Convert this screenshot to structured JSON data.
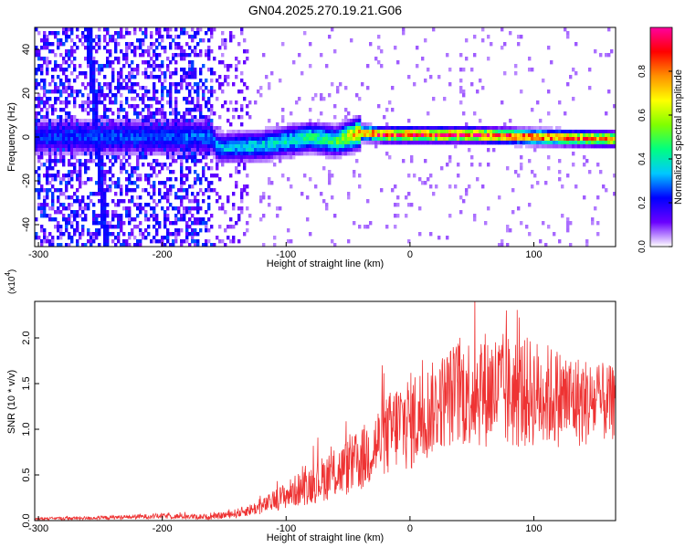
{
  "title": "GN04.2025.270.19.21.G06",
  "chart_data": [
    {
      "type": "heatmap",
      "xlabel": "Height of straight line (km)",
      "ylabel": "Frequency (Hz)",
      "xlim": [
        -303,
        166
      ],
      "ylim": [
        -50,
        50
      ],
      "xticks": [
        -300,
        -200,
        -100,
        0,
        100
      ],
      "xtick_labels": [
        "-300",
        "-200",
        "-100",
        "0",
        "100"
      ],
      "yticks": [
        -40,
        -20,
        0,
        20,
        40
      ],
      "ytick_labels": [
        "-40",
        "-20",
        "0",
        "20",
        "40"
      ],
      "colorbar": {
        "label": "Normalized spectral amplitude",
        "range": [
          0,
          1
        ],
        "ticks": [
          0.0,
          0.2,
          0.4,
          0.6,
          0.8
        ],
        "tick_labels": [
          "0.0",
          "0.2",
          "0.4",
          "0.6",
          "0.8"
        ],
        "colors": [
          "#ffffff",
          "#6a00ff",
          "#0000ff",
          "#00c8ff",
          "#00ff80",
          "#80ff00",
          "#ffff00",
          "#ff9000",
          "#ff0000",
          "#ff00a0"
        ]
      },
      "features": [
        {
          "name": "ridge",
          "x": [
            -303,
            -160,
            -155,
            -120,
            -80,
            -60,
            -40,
            -20,
            0,
            50,
            100,
            166
          ],
          "freq": [
            0,
            0,
            -5,
            -4,
            0,
            -2,
            2,
            1,
            1,
            1,
            0,
            -1
          ],
          "amplitude": [
            0.25,
            0.3,
            0.35,
            0.4,
            0.45,
            0.5,
            0.85,
            0.95,
            0.98,
            0.95,
            0.9,
            0.85
          ]
        },
        {
          "name": "diagonal-streak",
          "x": [
            -260,
            -245
          ],
          "freq": [
            50,
            -50
          ]
        }
      ]
    },
    {
      "type": "line",
      "xlabel": "Height of straight line (km)",
      "ylabel": "SNR (10 * v/v)",
      "scale_label": "(x10",
      "scale_exp": "4",
      "scale_close": ")",
      "xlim": [
        -303,
        166
      ],
      "ylim": [
        0,
        24000
      ],
      "xticks": [
        -300,
        -200,
        -100,
        0,
        100
      ],
      "xtick_labels": [
        "-300",
        "-200",
        "-100",
        "0",
        "100"
      ],
      "yticks": [
        0,
        5000,
        10000,
        15000,
        20000
      ],
      "ytick_labels": [
        "0.0",
        "0.5",
        "1.0",
        "1.5",
        "2.0"
      ],
      "color": "#ee3333",
      "series": [
        {
          "name": "SNR envelope",
          "x": [
            -303,
            -250,
            -200,
            -160,
            -140,
            -120,
            -100,
            -80,
            -60,
            -40,
            -30,
            -20,
            -10,
            0,
            10,
            20,
            30,
            40,
            60,
            80,
            100,
            120,
            140,
            166
          ],
          "y": [
            200,
            300,
            500,
            400,
            800,
            1500,
            2800,
            4000,
            5200,
            6500,
            8000,
            9000,
            10500,
            10800,
            11500,
            12500,
            13500,
            14000,
            14500,
            14000,
            14000,
            13500,
            13000,
            12800
          ],
          "noise": [
            150,
            200,
            300,
            300,
            500,
            800,
            1500,
            2200,
            2800,
            3500,
            4000,
            4500,
            5000,
            5500,
            5500,
            5000,
            5500,
            6000,
            6500,
            6500,
            6000,
            5500,
            5000,
            4000
          ]
        }
      ]
    }
  ]
}
